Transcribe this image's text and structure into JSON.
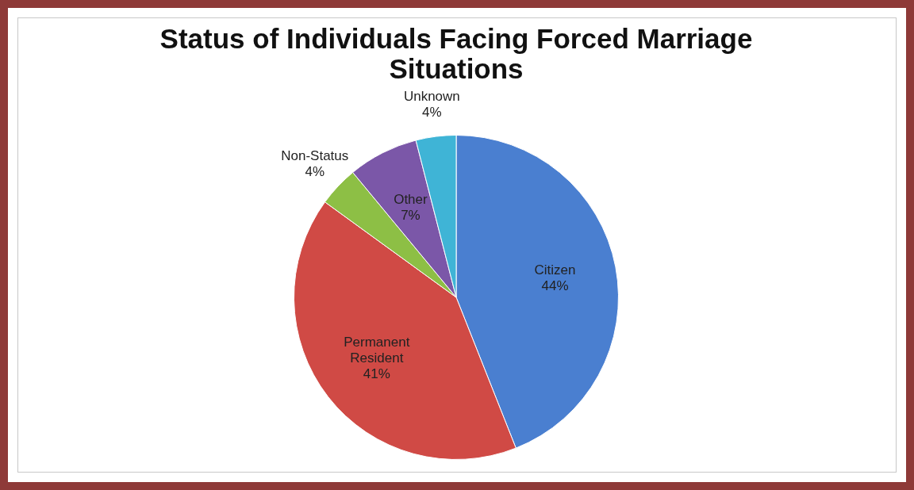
{
  "chart_data": {
    "type": "pie",
    "title": "Status of Individuals Facing Forced Marriage Situations",
    "categories": [
      "Citizen",
      "Permanent Resident",
      "Non-Status",
      "Other",
      "Unknown"
    ],
    "values": [
      44,
      41,
      4,
      7,
      4
    ],
    "value_labels": [
      "44%",
      "41%",
      "4%",
      "7%",
      "4%"
    ],
    "colors": [
      "#4a7fd0",
      "#d04a45",
      "#8dbf45",
      "#7b57a8",
      "#3fb4d6"
    ],
    "legend": false
  }
}
